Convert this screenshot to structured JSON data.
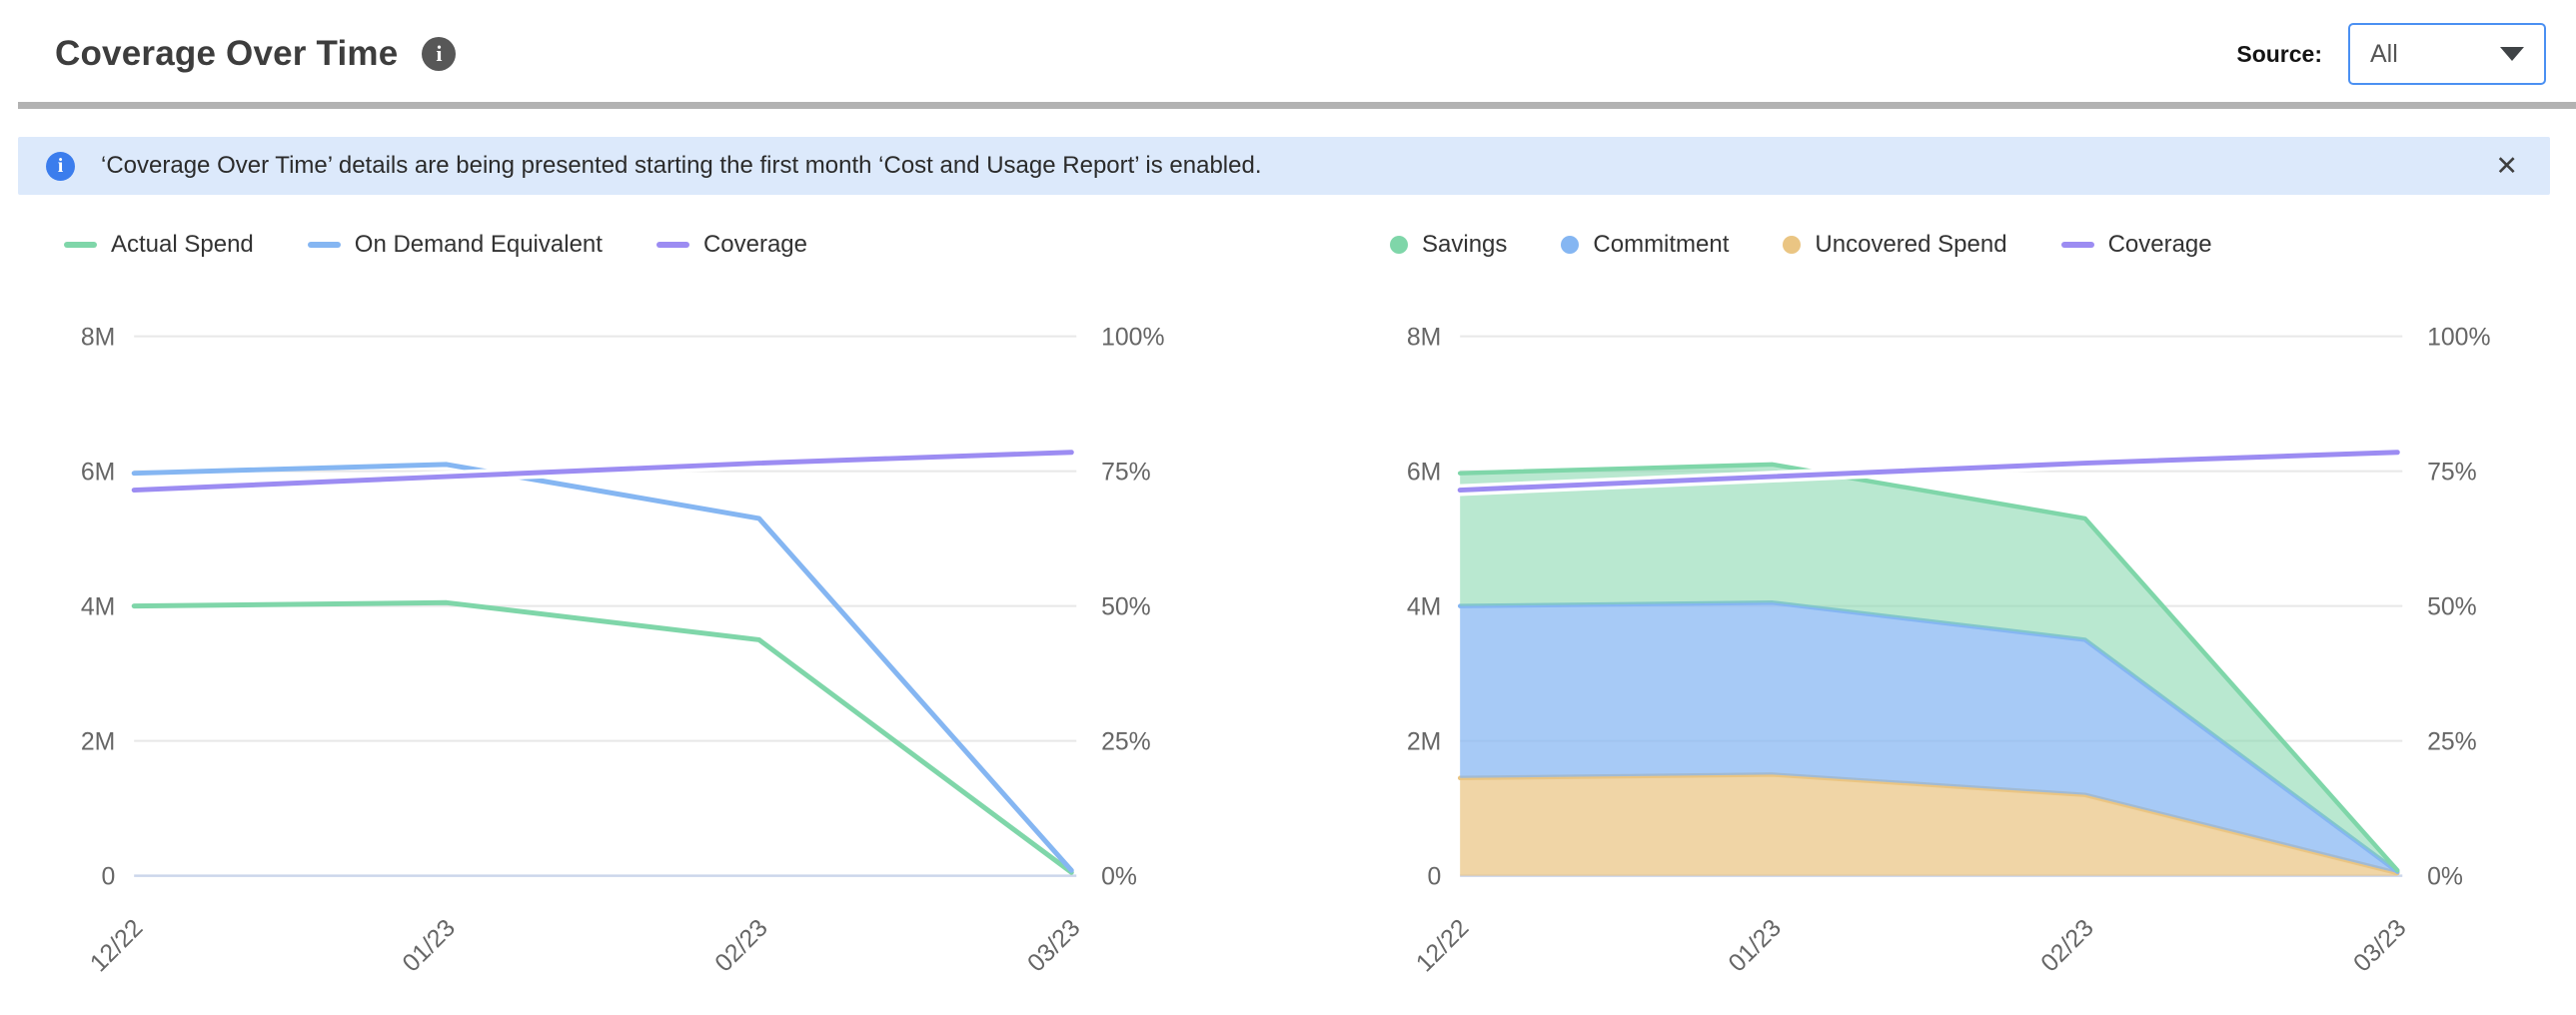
{
  "header": {
    "title": "Coverage Over Time",
    "source_label": "Source:",
    "source_value": "All"
  },
  "banner": {
    "text": "‘Coverage Over Time’ details are being presented starting the first month ‘Cost and Usage Report’ is enabled.",
    "close_glyph": "✕"
  },
  "colors": {
    "accent_blue": "#4b90f2",
    "banner_bg": "#dce9fb",
    "banner_icon_bg": "#3b7ded",
    "divider": "#b2b2b2",
    "grid_line": "#e8e8e8",
    "axis_line": "#ccd6eb",
    "axis_label": "#666666",
    "legend_text": "#333333",
    "green": "#7fd6a9",
    "blue": "#85b6f2",
    "orange": "#eac583",
    "purple": "#9c8cf2"
  },
  "chart_data": [
    {
      "type": "line",
      "title": "",
      "xlabel": "",
      "ylabel": "",
      "categories": [
        "12/22",
        "01/23",
        "02/23",
        "03/23"
      ],
      "y_left": {
        "labels": [
          "0",
          "2M",
          "4M",
          "6M",
          "8M"
        ],
        "range_millions": [
          0,
          8
        ]
      },
      "y_right": {
        "labels": [
          "0%",
          "25%",
          "50%",
          "75%",
          "100%"
        ],
        "range_percent": [
          0,
          100
        ]
      },
      "grid": true,
      "legend_position": "top-left",
      "legend_items": [
        "Actual Spend",
        "On Demand Equivalent",
        "Coverage"
      ],
      "series": [
        {
          "name": "Actual Spend",
          "axis": "left",
          "unit": "M",
          "kind": "line",
          "legend": "line",
          "color": "#7fd6a9",
          "values": [
            4.0,
            4.05,
            3.5,
            0.05
          ]
        },
        {
          "name": "On Demand Equivalent",
          "axis": "left",
          "unit": "M",
          "kind": "line",
          "legend": "line",
          "color": "#85b6f2",
          "values": [
            5.97,
            6.1,
            5.3,
            0.08
          ]
        },
        {
          "name": "Coverage",
          "axis": "right",
          "unit": "%",
          "kind": "line",
          "legend": "line",
          "halo": true,
          "color": "#9c8cf2",
          "values": [
            71.5,
            74,
            76.5,
            78.5
          ]
        }
      ]
    },
    {
      "type": "area",
      "stacked": true,
      "title": "",
      "xlabel": "",
      "ylabel": "",
      "categories": [
        "12/22",
        "01/23",
        "02/23",
        "03/23"
      ],
      "y_left": {
        "labels": [
          "0",
          "2M",
          "4M",
          "6M",
          "8M"
        ],
        "range_millions": [
          0,
          8
        ]
      },
      "y_right": {
        "labels": [
          "0%",
          "25%",
          "50%",
          "75%",
          "100%"
        ],
        "range_percent": [
          0,
          100
        ]
      },
      "grid": true,
      "legend_position": "top-left",
      "legend_items": [
        "Savings",
        "Commitment",
        "Uncovered Spend",
        "Coverage"
      ],
      "series": [
        {
          "name": "Uncovered Spend",
          "axis": "left",
          "unit": "M",
          "kind": "area",
          "legend": "circle",
          "color": "#eac583",
          "fill": "rgba(234,197,131,0.72)",
          "values": [
            1.45,
            1.5,
            1.2,
            0.04
          ]
        },
        {
          "name": "Commitment",
          "axis": "left",
          "unit": "M",
          "kind": "area",
          "legend": "circle",
          "color": "#85b6f2",
          "fill": "rgba(133,182,242,0.72)",
          "values": [
            2.55,
            2.55,
            2.3,
            0.02
          ]
        },
        {
          "name": "Savings",
          "axis": "left",
          "unit": "M",
          "kind": "area",
          "legend": "circle",
          "color": "#7fd6a9",
          "fill": "rgba(127,214,169,0.55)",
          "values": [
            1.97,
            2.05,
            1.8,
            0.02
          ]
        },
        {
          "name": "Coverage",
          "axis": "right",
          "unit": "%",
          "kind": "line",
          "legend": "line",
          "halo": true,
          "color": "#9c8cf2",
          "values": [
            71.5,
            74,
            76.5,
            78.5
          ]
        }
      ]
    }
  ]
}
